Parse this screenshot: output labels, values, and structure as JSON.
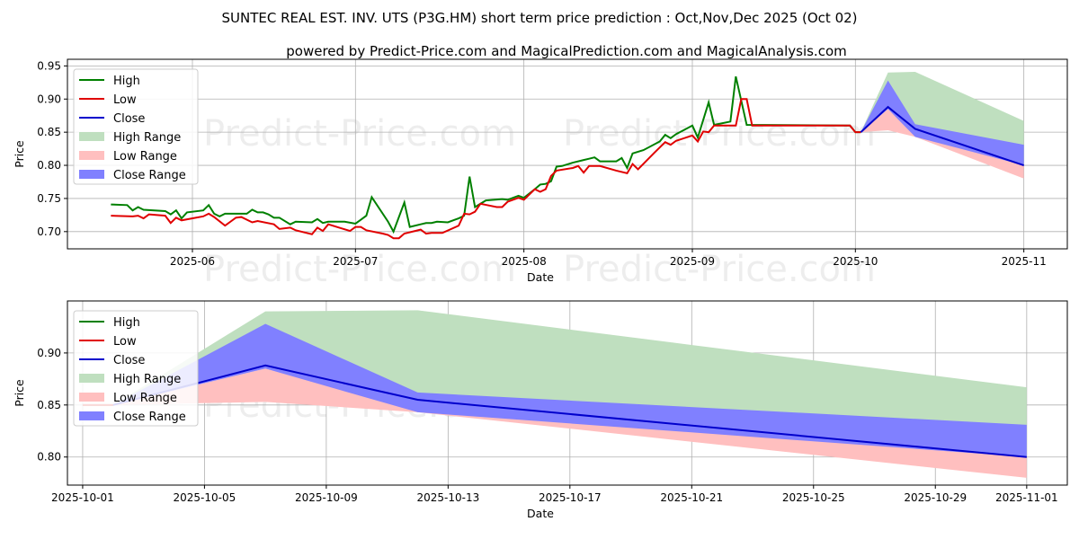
{
  "title": "SUNTEC REAL EST. INV. UTS (P3G.HM) short term price prediction : Oct,Nov,Dec 2025 (Oct 02)",
  "subtitle": "powered by Predict-Price.com and MagicalPrediction.com and MagicalAnalysis.com",
  "watermark": "Predict-Price.com",
  "colors": {
    "high": "#008000",
    "low": "#e00000",
    "close": "#0000cc",
    "high_range": "#bfdfbf",
    "low_range": "#ffbfbf",
    "close_range": "#8080ff"
  },
  "chart_data": [
    {
      "type": "line",
      "panel": "top",
      "xlabel": "Date",
      "ylabel": "Price",
      "xlim": [
        "2025-05-09",
        "2025-11-09"
      ],
      "ylim": [
        0.674,
        0.96
      ],
      "grid": true,
      "legend_position": "top-left",
      "legend": [
        "High",
        "Low",
        "Close",
        "High Range",
        "Low Range",
        "Close Range"
      ],
      "x_ticks": [
        "2025-06",
        "2025-07",
        "2025-08",
        "2025-09",
        "2025-10",
        "2025-11"
      ],
      "y_ticks": [
        "0.70",
        "0.75",
        "0.80",
        "0.85",
        "0.90",
        "0.95"
      ],
      "series": [
        {
          "name": "High",
          "points": [
            [
              "2025-05-17",
              0.741
            ],
            [
              "2025-05-20",
              0.74
            ],
            [
              "2025-05-21",
              0.732
            ],
            [
              "2025-05-22",
              0.737
            ],
            [
              "2025-05-23",
              0.733
            ],
            [
              "2025-05-27",
              0.731
            ],
            [
              "2025-05-28",
              0.726
            ],
            [
              "2025-05-29",
              0.732
            ],
            [
              "2025-05-30",
              0.72
            ],
            [
              "2025-05-31",
              0.729
            ],
            [
              "2025-06-03",
              0.732
            ],
            [
              "2025-06-04",
              0.74
            ],
            [
              "2025-06-05",
              0.727
            ],
            [
              "2025-06-06",
              0.723
            ],
            [
              "2025-06-07",
              0.727
            ],
            [
              "2025-06-10",
              0.727
            ],
            [
              "2025-06-11",
              0.727
            ],
            [
              "2025-06-12",
              0.733
            ],
            [
              "2025-06-13",
              0.729
            ],
            [
              "2025-06-14",
              0.729
            ],
            [
              "2025-06-15",
              0.726
            ],
            [
              "2025-06-16",
              0.721
            ],
            [
              "2025-06-17",
              0.721
            ],
            [
              "2025-06-19",
              0.711
            ],
            [
              "2025-06-20",
              0.715
            ],
            [
              "2025-06-23",
              0.714
            ],
            [
              "2025-06-24",
              0.719
            ],
            [
              "2025-06-25",
              0.713
            ],
            [
              "2025-06-26",
              0.715
            ],
            [
              "2025-06-29",
              0.715
            ],
            [
              "2025-07-01",
              0.712
            ],
            [
              "2025-07-02",
              0.718
            ],
            [
              "2025-07-03",
              0.724
            ],
            [
              "2025-07-04",
              0.752
            ],
            [
              "2025-07-07",
              0.715
            ],
            [
              "2025-07-08",
              0.7
            ],
            [
              "2025-07-10",
              0.744
            ],
            [
              "2025-07-11",
              0.707
            ],
            [
              "2025-07-13",
              0.711
            ],
            [
              "2025-07-14",
              0.713
            ],
            [
              "2025-07-15",
              0.713
            ],
            [
              "2025-07-16",
              0.715
            ],
            [
              "2025-07-18",
              0.714
            ],
            [
              "2025-07-20",
              0.72
            ],
            [
              "2025-07-21",
              0.724
            ],
            [
              "2025-07-22",
              0.783
            ],
            [
              "2025-07-23",
              0.737
            ],
            [
              "2025-07-25",
              0.747
            ],
            [
              "2025-07-28",
              0.749
            ],
            [
              "2025-07-29",
              0.748
            ],
            [
              "2025-07-31",
              0.754
            ],
            [
              "2025-08-01",
              0.751
            ],
            [
              "2025-08-03",
              0.764
            ],
            [
              "2025-08-04",
              0.771
            ],
            [
              "2025-08-05",
              0.772
            ],
            [
              "2025-08-06",
              0.776
            ],
            [
              "2025-08-07",
              0.798
            ],
            [
              "2025-08-08",
              0.799
            ],
            [
              "2025-08-10",
              0.804
            ],
            [
              "2025-08-12",
              0.808
            ],
            [
              "2025-08-13",
              0.81
            ],
            [
              "2025-08-14",
              0.812
            ],
            [
              "2025-08-15",
              0.806
            ],
            [
              "2025-08-18",
              0.806
            ],
            [
              "2025-08-19",
              0.811
            ],
            [
              "2025-08-20",
              0.796
            ],
            [
              "2025-08-21",
              0.818
            ],
            [
              "2025-08-23",
              0.823
            ],
            [
              "2025-08-26",
              0.836
            ],
            [
              "2025-08-27",
              0.846
            ],
            [
              "2025-08-28",
              0.841
            ],
            [
              "2025-08-29",
              0.847
            ],
            [
              "2025-09-01",
              0.86
            ],
            [
              "2025-09-02",
              0.842
            ],
            [
              "2025-09-04",
              0.895
            ],
            [
              "2025-09-05",
              0.861
            ],
            [
              "2025-09-08",
              0.866
            ],
            [
              "2025-09-09",
              0.934
            ],
            [
              "2025-09-11",
              0.861
            ],
            [
              "2025-09-30",
              0.86
            ],
            [
              "2025-10-01",
              0.85
            ],
            [
              "2025-10-02",
              0.85
            ]
          ]
        },
        {
          "name": "Low",
          "points": [
            [
              "2025-05-17",
              0.724
            ],
            [
              "2025-05-21",
              0.723
            ],
            [
              "2025-05-22",
              0.724
            ],
            [
              "2025-05-23",
              0.72
            ],
            [
              "2025-05-24",
              0.726
            ],
            [
              "2025-05-27",
              0.724
            ],
            [
              "2025-05-28",
              0.713
            ],
            [
              "2025-05-29",
              0.721
            ],
            [
              "2025-05-30",
              0.717
            ],
            [
              "2025-06-03",
              0.723
            ],
            [
              "2025-06-04",
              0.727
            ],
            [
              "2025-06-05",
              0.722
            ],
            [
              "2025-06-07",
              0.709
            ],
            [
              "2025-06-09",
              0.721
            ],
            [
              "2025-06-10",
              0.722
            ],
            [
              "2025-06-12",
              0.714
            ],
            [
              "2025-06-13",
              0.716
            ],
            [
              "2025-06-16",
              0.711
            ],
            [
              "2025-06-17",
              0.704
            ],
            [
              "2025-06-19",
              0.706
            ],
            [
              "2025-06-20",
              0.702
            ],
            [
              "2025-06-23",
              0.696
            ],
            [
              "2025-06-24",
              0.706
            ],
            [
              "2025-06-25",
              0.701
            ],
            [
              "2025-06-26",
              0.711
            ],
            [
              "2025-06-30",
              0.701
            ],
            [
              "2025-07-01",
              0.707
            ],
            [
              "2025-07-02",
              0.707
            ],
            [
              "2025-07-03",
              0.702
            ],
            [
              "2025-07-06",
              0.697
            ],
            [
              "2025-07-07",
              0.695
            ],
            [
              "2025-07-08",
              0.69
            ],
            [
              "2025-07-09",
              0.69
            ],
            [
              "2025-07-10",
              0.697
            ],
            [
              "2025-07-13",
              0.703
            ],
            [
              "2025-07-14",
              0.697
            ],
            [
              "2025-07-15",
              0.698
            ],
            [
              "2025-07-17",
              0.698
            ],
            [
              "2025-07-20",
              0.709
            ],
            [
              "2025-07-21",
              0.727
            ],
            [
              "2025-07-22",
              0.726
            ],
            [
              "2025-07-23",
              0.73
            ],
            [
              "2025-07-24",
              0.742
            ],
            [
              "2025-07-27",
              0.737
            ],
            [
              "2025-07-28",
              0.737
            ],
            [
              "2025-07-29",
              0.745
            ],
            [
              "2025-07-31",
              0.751
            ],
            [
              "2025-08-01",
              0.748
            ],
            [
              "2025-08-03",
              0.764
            ],
            [
              "2025-08-04",
              0.76
            ],
            [
              "2025-08-05",
              0.764
            ],
            [
              "2025-08-06",
              0.784
            ],
            [
              "2025-08-07",
              0.792
            ],
            [
              "2025-08-10",
              0.796
            ],
            [
              "2025-08-11",
              0.799
            ],
            [
              "2025-08-12",
              0.789
            ],
            [
              "2025-08-13",
              0.799
            ],
            [
              "2025-08-15",
              0.799
            ],
            [
              "2025-08-18",
              0.792
            ],
            [
              "2025-08-20",
              0.788
            ],
            [
              "2025-08-21",
              0.802
            ],
            [
              "2025-08-22",
              0.794
            ],
            [
              "2025-08-25",
              0.819
            ],
            [
              "2025-08-27",
              0.835
            ],
            [
              "2025-08-28",
              0.831
            ],
            [
              "2025-08-29",
              0.837
            ],
            [
              "2025-09-01",
              0.845
            ],
            [
              "2025-09-02",
              0.836
            ],
            [
              "2025-09-03",
              0.851
            ],
            [
              "2025-09-04",
              0.85
            ],
            [
              "2025-09-05",
              0.86
            ],
            [
              "2025-09-09",
              0.86
            ],
            [
              "2025-09-10",
              0.9
            ],
            [
              "2025-09-11",
              0.9
            ],
            [
              "2025-09-12",
              0.86
            ],
            [
              "2025-09-30",
              0.86
            ],
            [
              "2025-10-01",
              0.85
            ],
            [
              "2025-10-02",
              0.85
            ]
          ]
        }
      ]
    },
    {
      "type": "line",
      "panel": "bottom",
      "xlabel": "Date",
      "ylabel": "Price",
      "xlim": [
        "2025-09-30T12:00",
        "2025-11-02T08:00"
      ],
      "ylim": [
        0.773,
        0.95
      ],
      "grid": true,
      "legend_position": "top-left",
      "legend": [
        "High",
        "Low",
        "Close",
        "High Range",
        "Low Range",
        "Close Range"
      ],
      "x_ticks": [
        "2025-10-01",
        "2025-10-05",
        "2025-10-09",
        "2025-10-13",
        "2025-10-17",
        "2025-10-21",
        "2025-10-25",
        "2025-10-29",
        "2025-11-01"
      ],
      "y_ticks": [
        "0.80",
        "0.85",
        "0.90"
      ]
    }
  ],
  "forecast": {
    "dates": [
      "2025-10-02",
      "2025-10-07",
      "2025-10-12",
      "2025-11-01"
    ],
    "close": [
      0.85,
      0.888,
      0.855,
      0.8
    ],
    "high_range": {
      "upper": [
        0.85,
        0.94,
        0.941,
        0.867
      ],
      "lower": [
        0.85,
        0.888,
        0.855,
        0.8
      ]
    },
    "low_range": {
      "upper": [
        0.85,
        0.885,
        0.845,
        0.8
      ],
      "lower": [
        0.85,
        0.853,
        0.843,
        0.78
      ]
    },
    "close_range": {
      "upper": [
        0.85,
        0.928,
        0.862,
        0.831
      ],
      "lower": [
        0.85,
        0.885,
        0.843,
        0.8
      ]
    }
  }
}
